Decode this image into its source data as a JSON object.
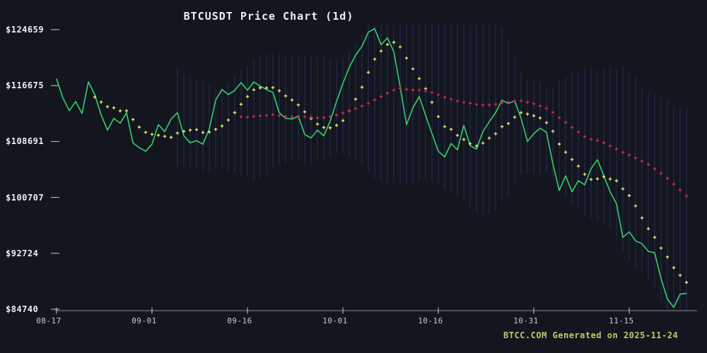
{
  "chart_data": {
    "type": "line",
    "title": "BTCUSDT Price Chart (1d)",
    "symbol": "BTCUSDT",
    "interval": "1d",
    "footer": "BTCC.COM Generated on 2025-11-24",
    "start_date": "2025-08-17",
    "end_date": "2025-11-24",
    "xlabel": "",
    "ylabel": "",
    "legend": "none",
    "grid": "vertical-band-lines",
    "ylim": [
      84740,
      124659
    ],
    "y_ticks": [
      {
        "label": "$124659",
        "value": 124659
      },
      {
        "label": "$116675",
        "value": 116675
      },
      {
        "label": "$108691",
        "value": 108691
      },
      {
        "label": "$100707",
        "value": 100707
      },
      {
        "label": "$92724",
        "value": 92724
      },
      {
        "label": "$84740",
        "value": 84740
      }
    ],
    "x_ticks": [
      {
        "label": "08-17",
        "day_index": 0
      },
      {
        "label": "09-01",
        "day_index": 15
      },
      {
        "label": "09-16",
        "day_index": 30
      },
      {
        "label": "10-01",
        "day_index": 45
      },
      {
        "label": "10-16",
        "day_index": 60
      },
      {
        "label": "10-31",
        "day_index": 75
      },
      {
        "label": "11-15",
        "day_index": 90
      }
    ],
    "series": [
      {
        "name": "Close",
        "style": "line",
        "color": "#35d06a",
        "values": [
          117600,
          114900,
          113100,
          114400,
          112700,
          117200,
          115400,
          112500,
          110300,
          112000,
          111300,
          112800,
          108500,
          107800,
          107300,
          108300,
          111100,
          110100,
          111900,
          112800,
          109500,
          108500,
          108800,
          108300,
          110500,
          114600,
          116100,
          115400,
          116000,
          117100,
          116000,
          117200,
          116600,
          116100,
          115700,
          112800,
          112000,
          111900,
          112300,
          109700,
          109200,
          110300,
          109500,
          111600,
          114400,
          117000,
          119300,
          121000,
          122300,
          124300,
          124800,
          122500,
          123500,
          121500,
          116500,
          111100,
          113500,
          115100,
          112400,
          109800,
          107300,
          106500,
          108400,
          107500,
          111000,
          108100,
          107600,
          110100,
          111500,
          112800,
          114600,
          114100,
          114500,
          112000,
          108700,
          109800,
          110600,
          110000,
          105500,
          101700,
          103800,
          101500,
          103100,
          102500,
          104800,
          106100,
          103800,
          101500,
          99800,
          95000,
          95800,
          94500,
          94100,
          93000,
          92800,
          89100,
          86200,
          85000,
          86900,
          87000
        ]
      }
    ],
    "indicators": [
      {
        "name": "MA7",
        "window": 7,
        "style": "plus-dots",
        "color": "#e2e37a"
      },
      {
        "name": "MA30",
        "window": 30,
        "style": "plus-dots",
        "color": "#ce2b52"
      },
      {
        "name": "BollingerBand",
        "window": 20,
        "k": 2.5,
        "style": "vertical-lines",
        "color": "#232c5a"
      }
    ],
    "colors": {
      "background": "#14161f",
      "axis_line": "#858c99",
      "tick_mark": "#c6cbd4",
      "tick_label": "#c6cbd4",
      "title": "#eceff3",
      "footer": "#b8cc66"
    }
  }
}
